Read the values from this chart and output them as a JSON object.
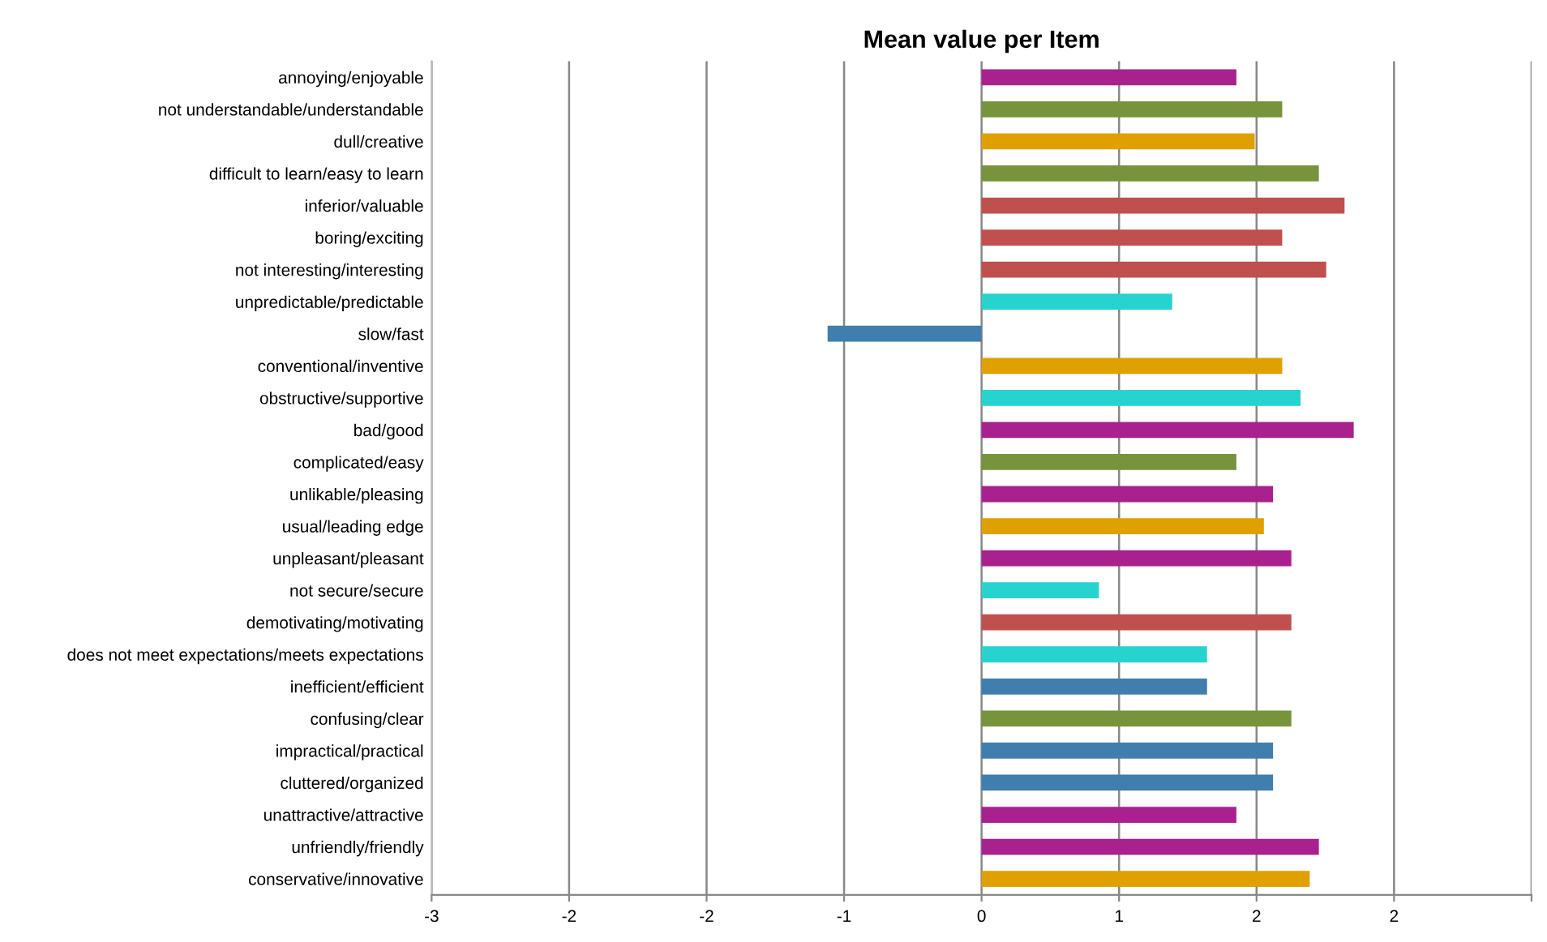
{
  "chart_data": {
    "type": "bar",
    "orientation": "horizontal",
    "title": "Mean value per Item",
    "categories": [
      "annoying/enjoyable",
      "not understandable/understandable",
      "dull/creative",
      "difficult to learn/easy to learn",
      "inferior/valuable",
      "boring/exciting",
      "not interesting/interesting",
      "unpredictable/predictable",
      "slow/fast",
      "conventional/inventive",
      "obstructive/supportive",
      "bad/good",
      "complicated/easy",
      "unlikable/pleasing",
      "usual/leading edge",
      "unpleasant/pleasant",
      "not secure/secure",
      "demotivating/motivating",
      "does not meet expectations/meets expectations",
      "inefficient/efficient",
      "confusing/clear",
      "impractical/practical",
      "cluttered/organized",
      "unattractive/attractive",
      "unfriendly/friendly",
      "conservative/innovative"
    ],
    "values": [
      1.39,
      1.64,
      1.49,
      1.84,
      1.98,
      1.64,
      1.88,
      1.04,
      -0.84,
      1.64,
      1.74,
      2.03,
      1.39,
      1.59,
      1.54,
      1.69,
      0.64,
      1.69,
      1.23,
      1.23,
      1.69,
      1.59,
      1.59,
      1.39,
      1.84,
      1.79
    ],
    "colors": [
      "#a8218e",
      "#77933c",
      "#e0a000",
      "#77933c",
      "#c0504d",
      "#c0504d",
      "#c0504d",
      "#26d3cf",
      "#3f7eae",
      "#e0a000",
      "#26d3cf",
      "#a8218e",
      "#77933c",
      "#a8218e",
      "#e0a000",
      "#a8218e",
      "#26d3cf",
      "#c0504d",
      "#26d3cf",
      "#3f7eae",
      "#77933c",
      "#3f7eae",
      "#3f7eae",
      "#a8218e",
      "#a8218e",
      "#e0a000"
    ],
    "xlim": [
      -3,
      3
    ],
    "xticks": [
      -3,
      {
        "value": -2.25,
        "label": "-2"
      },
      {
        "value": -1.5,
        "label": "-2"
      },
      {
        "value": -0.75,
        "label": "-1"
      },
      0,
      {
        "value": 0.75,
        "label": "1"
      },
      {
        "value": 1.5,
        "label": "2"
      },
      {
        "value": 2.25,
        "label": "2"
      },
      {
        "value": 3,
        "label": null
      }
    ],
    "grid": "x",
    "legend": false
  }
}
